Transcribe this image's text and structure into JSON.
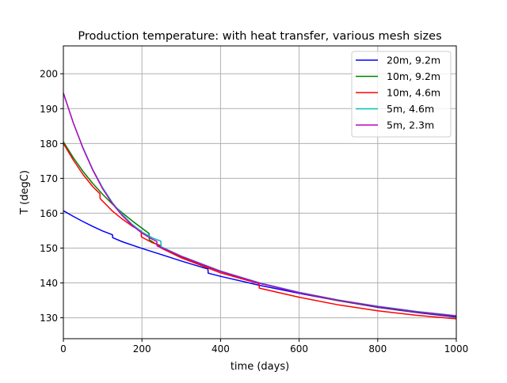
{
  "chart_data": {
    "type": "line",
    "title": "Production temperature: with heat transfer, various mesh sizes",
    "xlabel": "time (days)",
    "ylabel": "T (degC)",
    "xlim": [
      0,
      1000
    ],
    "ylim": [
      124,
      208
    ],
    "xticks": [
      0,
      200,
      400,
      600,
      800,
      1000
    ],
    "yticks": [
      130,
      140,
      150,
      160,
      170,
      180,
      190,
      200
    ],
    "grid": true,
    "legend_position": "top-right",
    "series": [
      {
        "name": "20m, 9.2m",
        "color": "#0000ff",
        "points": [
          [
            0,
            160.7
          ],
          [
            25,
            159.1
          ],
          [
            50,
            157.6
          ],
          [
            75,
            156.2
          ],
          [
            100,
            154.9
          ],
          [
            125,
            153.8
          ],
          [
            125.5,
            153.0
          ],
          [
            150,
            151.8
          ],
          [
            200,
            149.9
          ],
          [
            250,
            148.1
          ],
          [
            300,
            146.3
          ],
          [
            350,
            144.6
          ],
          [
            368,
            144.0
          ],
          [
            368.5,
            142.8
          ],
          [
            400,
            141.9
          ],
          [
            500,
            139.3
          ],
          [
            600,
            137.0
          ],
          [
            700,
            134.9
          ],
          [
            800,
            133.0
          ],
          [
            900,
            131.5
          ],
          [
            1000,
            130.2
          ]
        ]
      },
      {
        "name": "10m, 9.2m",
        "color": "#008000",
        "points": [
          [
            0,
            180.5
          ],
          [
            25,
            176.0
          ],
          [
            50,
            172.0
          ],
          [
            75,
            168.5
          ],
          [
            100,
            165.4
          ],
          [
            125,
            162.6
          ],
          [
            150,
            160.1
          ],
          [
            175,
            157.8
          ],
          [
            200,
            155.7
          ],
          [
            218,
            154.2
          ],
          [
            218.5,
            152.4
          ],
          [
            250,
            150.1
          ],
          [
            300,
            147.5
          ],
          [
            400,
            143.3
          ],
          [
            500,
            139.9
          ],
          [
            600,
            137.2
          ],
          [
            700,
            134.9
          ],
          [
            800,
            133.1
          ],
          [
            900,
            131.6
          ],
          [
            1000,
            130.4
          ]
        ]
      },
      {
        "name": "10m, 4.6m",
        "color": "#ff0000",
        "points": [
          [
            0,
            180.0
          ],
          [
            25,
            175.3
          ],
          [
            50,
            171.1
          ],
          [
            75,
            167.6
          ],
          [
            93,
            165.6
          ],
          [
            93.5,
            164.2
          ],
          [
            125,
            160.6
          ],
          [
            150,
            158.3
          ],
          [
            175,
            156.3
          ],
          [
            198,
            154.9
          ],
          [
            198.5,
            153.2
          ],
          [
            225,
            151.6
          ],
          [
            248,
            150.7
          ],
          [
            248.5,
            150.0
          ],
          [
            300,
            147.2
          ],
          [
            400,
            142.9
          ],
          [
            498,
            139.8
          ],
          [
            498.5,
            138.5
          ],
          [
            600,
            135.9
          ],
          [
            700,
            133.7
          ],
          [
            800,
            132.0
          ],
          [
            900,
            130.7
          ],
          [
            1000,
            129.7
          ]
        ]
      },
      {
        "name": "5m, 4.6m",
        "color": "#00bfbf",
        "points": [
          [
            0,
            194.5
          ],
          [
            25,
            186.0
          ],
          [
            50,
            178.8
          ],
          [
            75,
            172.5
          ],
          [
            100,
            167.3
          ],
          [
            125,
            163.0
          ],
          [
            150,
            159.6
          ],
          [
            175,
            156.8
          ],
          [
            200,
            154.6
          ],
          [
            225,
            153.0
          ],
          [
            248,
            152.0
          ],
          [
            248.5,
            150.4
          ],
          [
            300,
            147.7
          ],
          [
            400,
            143.4
          ],
          [
            500,
            140.0
          ],
          [
            600,
            137.3
          ],
          [
            700,
            135.1
          ],
          [
            800,
            133.3
          ],
          [
            900,
            131.8
          ],
          [
            1000,
            130.6
          ]
        ]
      },
      {
        "name": "5m, 2.3m",
        "color": "#bf00bf",
        "points": [
          [
            0,
            194.5
          ],
          [
            25,
            186.0
          ],
          [
            50,
            178.6
          ],
          [
            75,
            172.3
          ],
          [
            100,
            167.0
          ],
          [
            125,
            162.7
          ],
          [
            150,
            159.3
          ],
          [
            175,
            156.5
          ],
          [
            200,
            154.3
          ],
          [
            225,
            152.6
          ],
          [
            238,
            151.9
          ],
          [
            238.5,
            150.6
          ],
          [
            260,
            149.6
          ],
          [
            300,
            147.6
          ],
          [
            400,
            143.3
          ],
          [
            500,
            139.9
          ],
          [
            600,
            137.2
          ],
          [
            700,
            135.0
          ],
          [
            800,
            133.2
          ],
          [
            900,
            131.7
          ],
          [
            1000,
            130.5
          ]
        ]
      }
    ]
  }
}
